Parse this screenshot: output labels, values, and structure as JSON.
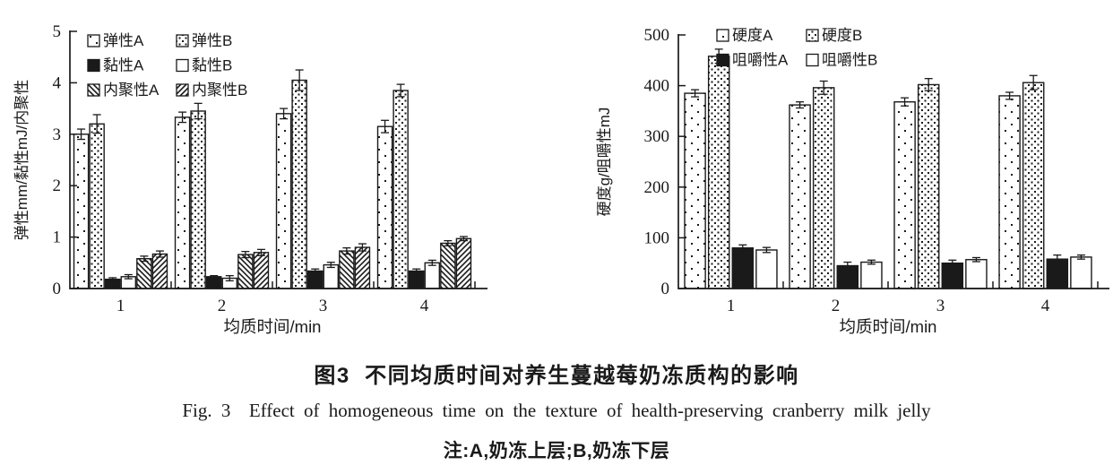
{
  "page": {
    "background": "#ffffff",
    "ink": "#1a1a1a"
  },
  "figure": {
    "caption_cn": "图3  不同均质时间对养生蔓越莓奶冻质构的影响",
    "caption_en": "Fig. 3  Effect of homogeneous time on the texture of health-preserving cranberry milk jelly",
    "note": "注:A,奶冻上层;B,奶冻下层"
  },
  "chart_data": [
    {
      "type": "bar",
      "title": "",
      "xlabel": "均质时间/min",
      "ylabel": "弹性mm/黏性mJ/内聚性",
      "ylim": [
        0,
        5
      ],
      "yticks": [
        0,
        1,
        2,
        3,
        4,
        5
      ],
      "categories": [
        "1",
        "2",
        "3",
        "4"
      ],
      "grid": false,
      "legend_position": "top-left-inside",
      "error_bars": true,
      "series": [
        {
          "name": "弹性A",
          "pattern": "dots-sparse",
          "values": [
            3.0,
            3.33,
            3.4,
            3.15
          ],
          "errors": [
            0.1,
            0.1,
            0.1,
            0.12
          ]
        },
        {
          "name": "弹性B",
          "pattern": "dots-dense",
          "values": [
            3.2,
            3.45,
            4.05,
            3.85
          ],
          "errors": [
            0.18,
            0.15,
            0.2,
            0.12
          ]
        },
        {
          "name": "黏性A",
          "pattern": "solid",
          "values": [
            0.18,
            0.23,
            0.34,
            0.34
          ],
          "errors": [
            0.03,
            0.02,
            0.04,
            0.04
          ]
        },
        {
          "name": "黏性B",
          "pattern": "open",
          "values": [
            0.23,
            0.2,
            0.46,
            0.5
          ],
          "errors": [
            0.04,
            0.05,
            0.05,
            0.05
          ]
        },
        {
          "name": "内聚性A",
          "pattern": "hatch-back",
          "values": [
            0.58,
            0.66,
            0.73,
            0.88
          ],
          "errors": [
            0.05,
            0.06,
            0.06,
            0.05
          ]
        },
        {
          "name": "内聚性B",
          "pattern": "hatch-fwd",
          "values": [
            0.67,
            0.7,
            0.8,
            0.97
          ],
          "errors": [
            0.06,
            0.06,
            0.07,
            0.04
          ]
        }
      ]
    },
    {
      "type": "bar",
      "title": "",
      "xlabel": "均质时间/min",
      "ylabel": "硬度g/咀嚼性mJ",
      "ylim": [
        0,
        500
      ],
      "yticks": [
        0,
        100,
        200,
        300,
        400,
        500
      ],
      "categories": [
        "1",
        "2",
        "3",
        "4"
      ],
      "grid": false,
      "legend_position": "top-left-inside",
      "error_bars": true,
      "series": [
        {
          "name": "硬度A",
          "pattern": "dots-sparse",
          "values": [
            385,
            362,
            368,
            380
          ],
          "errors": [
            7,
            6,
            8,
            7
          ]
        },
        {
          "name": "硬度B",
          "pattern": "dots-dense",
          "values": [
            458,
            396,
            402,
            406
          ],
          "errors": [
            14,
            13,
            12,
            14
          ]
        },
        {
          "name": "咀嚼性A",
          "pattern": "solid",
          "values": [
            80,
            45,
            50,
            58
          ],
          "errors": [
            6,
            7,
            6,
            8
          ]
        },
        {
          "name": "咀嚼性B",
          "pattern": "open",
          "values": [
            76,
            52,
            57,
            62
          ],
          "errors": [
            5,
            4,
            4,
            4
          ]
        }
      ]
    }
  ]
}
